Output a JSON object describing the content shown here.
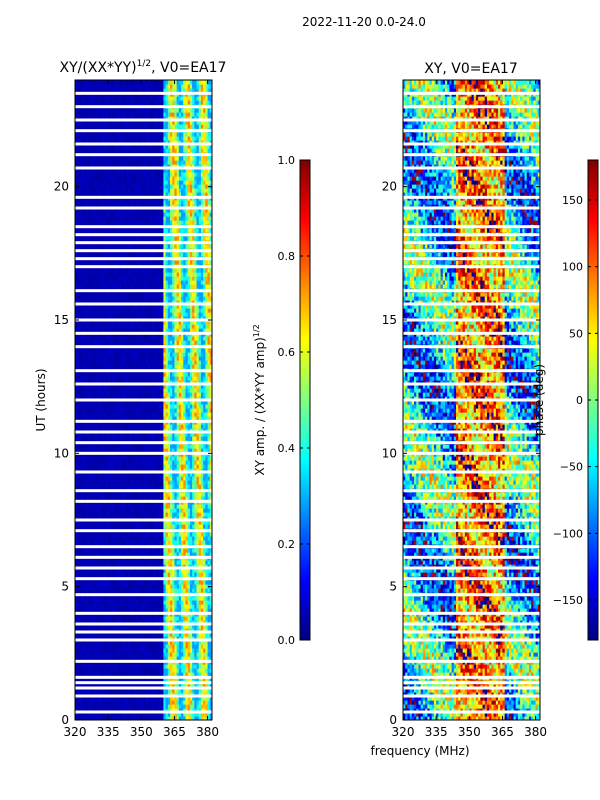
{
  "suptitle": "2022-11-20 0.0-24.0",
  "colors": {
    "jet": [
      "#00007f",
      "#0000ff",
      "#007fff",
      "#00ffff",
      "#7fff7f",
      "#ffff00",
      "#ff7f00",
      "#ff0000",
      "#7f0000"
    ],
    "gap": "#ffffff",
    "frame": "#000000"
  },
  "chart_data": [
    {
      "type": "heatmap",
      "title_main": "XY/(XX*YY)",
      "title_sup": "1/2",
      "title_tail": ", V0=EA17",
      "xlabel": "",
      "ylabel": "UT (hours)",
      "xlim": [
        320,
        382
      ],
      "ylim": [
        0,
        24
      ],
      "xticks": [
        320,
        335,
        350,
        365,
        380
      ],
      "yticks": [
        0,
        5,
        10,
        15,
        20
      ],
      "colorbar": {
        "label_main": "XY amp. / (XX*YY amp)",
        "label_sup": "1/2",
        "range": [
          0.0,
          1.0
        ],
        "ticks": [
          "0.0",
          "0.2",
          "0.4",
          "0.6",
          "0.8",
          "1.0"
        ]
      },
      "description": "amplitude low (~0.05) below 360 MHz, bright cyan-yellow band 360-382 MHz",
      "gaps_hours": [
        0.3,
        0.9,
        1.2,
        1.4,
        1.6,
        2.2,
        3.0,
        3.3,
        3.6,
        4.0,
        4.7,
        5.3,
        5.7,
        6.1,
        6.5,
        7.1,
        7.5,
        8.2,
        8.6,
        9.3,
        10.0,
        10.4,
        10.8,
        11.2,
        12.0,
        12.6,
        13.1,
        14.0,
        14.5,
        15.0,
        15.6,
        16.1,
        17.0,
        17.3,
        17.6,
        17.9,
        18.2,
        18.5,
        19.2,
        19.6,
        20.7,
        21.2,
        21.6,
        22.1,
        22.5,
        23.0,
        23.5
      ]
    },
    {
      "type": "heatmap",
      "title_main": "XY, V0=EA17",
      "xlabel": "frequency (MHz)",
      "ylabel": "",
      "xlim": [
        320,
        382
      ],
      "ylim": [
        0,
        24
      ],
      "xticks": [
        320,
        335,
        350,
        365,
        380
      ],
      "yticks": [
        0,
        5,
        10,
        15,
        20
      ],
      "colorbar": {
        "label_main": "phase (deg)",
        "range": [
          -180,
          180
        ],
        "ticks": [
          "−150",
          "−100",
          "−50",
          "0",
          "50",
          "100",
          "150"
        ]
      },
      "description": "phase wraps across full range; red/orange region near 345-365 MHz, cyan/green elsewhere",
      "gaps_hours": [
        0.3,
        0.9,
        1.2,
        1.4,
        1.6,
        2.2,
        3.0,
        3.3,
        3.6,
        4.0,
        4.7,
        5.3,
        5.7,
        6.1,
        6.5,
        7.1,
        7.5,
        8.2,
        8.6,
        9.3,
        10.0,
        10.4,
        10.8,
        11.2,
        12.0,
        12.6,
        13.1,
        14.0,
        14.5,
        15.0,
        15.6,
        16.1,
        17.0,
        17.3,
        17.6,
        17.9,
        18.2,
        18.5,
        19.2,
        19.6,
        20.7,
        21.2,
        21.6,
        22.1,
        22.5,
        23.0,
        23.5
      ]
    }
  ]
}
